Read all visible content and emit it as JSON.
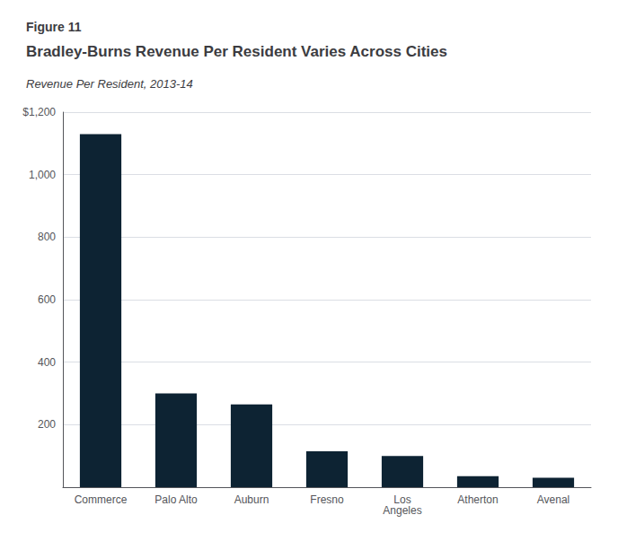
{
  "chart_data": {
    "type": "bar",
    "figure_label": "Figure 11",
    "title": "Bradley-Burns Revenue Per Resident Varies Across Cities",
    "subtitle": "Revenue Per Resident, 2013-14",
    "categories": [
      "Commerce",
      "Palo Alto",
      "Auburn",
      "Fresno",
      "Los\nAngeles",
      "Atherton",
      "Avenal"
    ],
    "values": [
      1130,
      300,
      265,
      115,
      100,
      35,
      30
    ],
    "color": "#0d2333",
    "ylim": [
      0,
      1200
    ],
    "yticks": [
      {
        "value": 0,
        "label": null
      },
      200,
      400,
      600,
      800,
      {
        "value": 1000,
        "label": "1,000"
      },
      {
        "value": 1200,
        "label": "$1,200"
      }
    ],
    "grid": true
  }
}
